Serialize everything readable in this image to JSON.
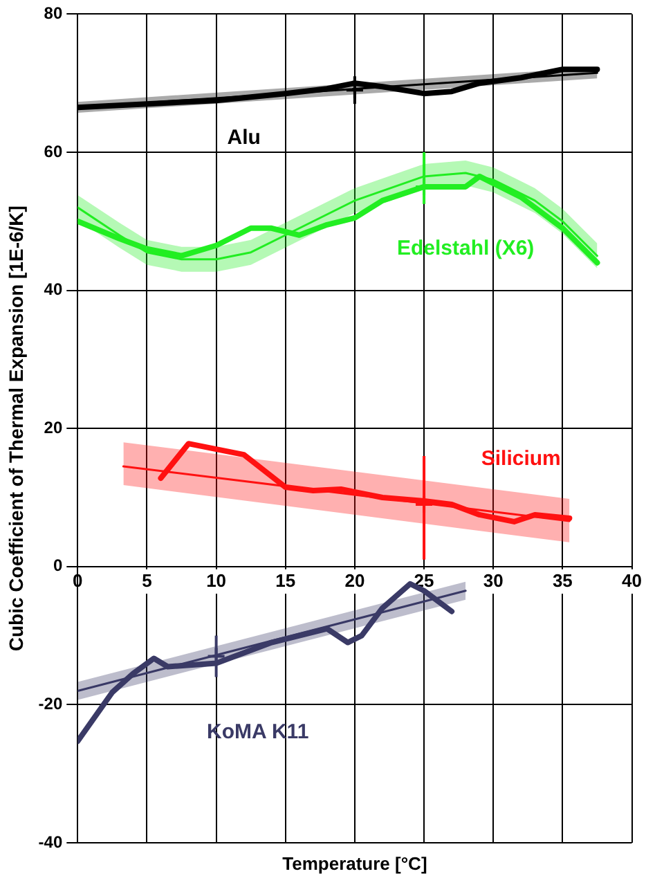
{
  "chart_data": {
    "type": "line",
    "xlabel": "Temperature [°C]",
    "ylabel": "Cubic Coefficient of Thermal Expansion [1E-6/K]",
    "xlim": [
      0,
      40
    ],
    "xticks": [
      0,
      5,
      10,
      15,
      20,
      25,
      30,
      35,
      40
    ],
    "ylim": [
      -40,
      80
    ],
    "yticks": [
      -40,
      -20,
      0,
      20,
      40,
      60,
      80
    ],
    "grid": true,
    "legend": false,
    "marker": "none",
    "series": [
      {
        "name": "Alu",
        "color": "#000000",
        "x": [
          0,
          5,
          10,
          15,
          18,
          20,
          22,
          25,
          27,
          29,
          32,
          35,
          37.5
        ],
        "values": [
          66.5,
          67,
          67.5,
          68.5,
          69.2,
          70,
          69.5,
          68.5,
          68.8,
          70,
          70.8,
          72,
          72
        ]
      },
      {
        "color": "#000000",
        "x": [
          0,
          37.5
        ],
        "values": [
          66.5,
          71.5
        ],
        "lower": [
          65.7,
          70.7
        ],
        "upper": [
          67.3,
          72.3
        ]
      },
      {
        "type": "scatter",
        "marker": "cross",
        "color": "#000000",
        "x": [
          20
        ],
        "values": [
          69
        ],
        "errors": [
          [
            67,
            71
          ]
        ]
      },
      {
        "name": "Edelstahl (X6)",
        "color": "#22ee22",
        "x": [
          0,
          3,
          5,
          7.5,
          10,
          12.5,
          14,
          16,
          18,
          20,
          22,
          25,
          28,
          29,
          32,
          35,
          37.5
        ],
        "values": [
          50,
          47.5,
          46,
          45,
          46.5,
          49,
          49,
          48,
          49.5,
          50.5,
          53,
          55,
          55,
          56.5,
          53.5,
          49,
          44
        ]
      },
      {
        "color": "#22ee22",
        "x": [
          0,
          3,
          5,
          7.5,
          10,
          12.5,
          15,
          20,
          25,
          28,
          30,
          33,
          35,
          37.5
        ],
        "values": [
          52,
          48,
          45.5,
          44.5,
          44.5,
          45.5,
          48,
          53,
          56.5,
          57,
          56,
          53,
          50,
          45
        ],
        "lower": [
          50.2,
          46.2,
          43.7,
          42.7,
          42.7,
          43.7,
          46.2,
          51.2,
          54.7,
          55.2,
          54.2,
          51.2,
          48.2,
          43.2
        ],
        "upper": [
          53.8,
          49.8,
          47.3,
          46.3,
          46.3,
          47.3,
          49.8,
          54.8,
          58.3,
          58.8,
          57.8,
          54.8,
          51.8,
          46.8
        ]
      },
      {
        "type": "scatter",
        "marker": "cross",
        "color": "#22ee22",
        "x": [
          25
        ],
        "values": [
          55
        ],
        "errors": [
          [
            52.5,
            60
          ]
        ]
      },
      {
        "name": "Silicium",
        "color": "#ff1111",
        "x": [
          6,
          8,
          12,
          15,
          17,
          19,
          22,
          25,
          27,
          29,
          31.5,
          33,
          35.5
        ],
        "values": [
          12.8,
          17.8,
          16.2,
          11.5,
          11,
          11.2,
          10,
          9.5,
          9,
          7.5,
          6.5,
          7.5,
          7
        ]
      },
      {
        "color": "#ff1111",
        "x": [
          3.3,
          35.5
        ],
        "values": [
          14.5,
          6.6
        ],
        "lower": [
          11.8,
          3.5
        ],
        "upper": [
          18,
          9.8
        ]
      },
      {
        "type": "scatter",
        "marker": "cross",
        "color": "#ff1111",
        "x": [
          25
        ],
        "values": [
          9
        ],
        "errors": [
          [
            1,
            16
          ]
        ]
      },
      {
        "name": "KoMA K11",
        "color": "#3a3a66",
        "x": [
          0,
          2.5,
          4,
          5.5,
          6.5,
          10,
          12,
          14,
          16,
          18,
          19.5,
          20.5,
          22,
          24,
          25,
          27
        ],
        "values": [
          -25.3,
          -18.2,
          -15.5,
          -13.3,
          -14.5,
          -14,
          -12.5,
          -11,
          -10,
          -9,
          -11,
          -10,
          -6,
          -2.5,
          -3.5,
          -6.5
        ]
      },
      {
        "color": "#3a3a66",
        "x": [
          0,
          28
        ],
        "values": [
          -18,
          -3.5
        ],
        "lower": [
          -19.3,
          -4.8
        ],
        "upper": [
          -16.7,
          -2.2
        ]
      },
      {
        "type": "scatter",
        "marker": "cross",
        "color": "#3a3a66",
        "x": [
          10
        ],
        "values": [
          -13
        ],
        "errors": [
          [
            -16,
            -10
          ]
        ]
      }
    ]
  }
}
